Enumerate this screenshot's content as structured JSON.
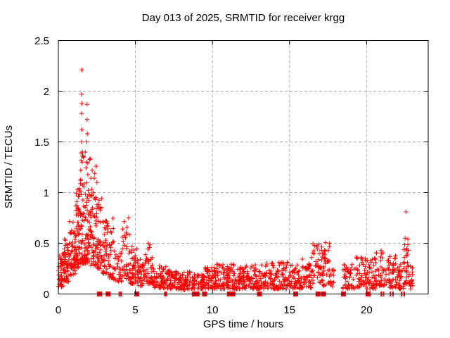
{
  "page": {
    "background": "#ffffff"
  },
  "chart_data": {
    "type": "scatter",
    "title": "Day 013 of 2025, SRMTID for receiver krgg",
    "xlabel": "GPS time / hours",
    "ylabel": "SRMTID / TECUs",
    "xlim": [
      0,
      24
    ],
    "ylim": [
      0,
      2.5
    ],
    "x_ticks": [
      0,
      5,
      10,
      15,
      20
    ],
    "x_tick_labels": [
      "0",
      "5",
      "10",
      "15",
      "20"
    ],
    "y_ticks": [
      0,
      0.5,
      1,
      1.5,
      2,
      2.5
    ],
    "y_tick_labels": [
      "0",
      "0.5",
      "1",
      "1.5",
      "2",
      "2.5"
    ],
    "grid": true,
    "grid_style": "dashed",
    "legend": null,
    "marker": "plus",
    "marker_color": "#ff0000",
    "grid_color": "#aaaaaa",
    "axis_color": "#000000",
    "seed": 20250113,
    "peak_points": [
      [
        1.53,
        2.21
      ],
      [
        1.5,
        1.97
      ],
      [
        1.53,
        1.88
      ],
      [
        1.86,
        1.87
      ],
      [
        1.5,
        1.78
      ],
      [
        1.86,
        1.72
      ],
      [
        1.53,
        1.62
      ],
      [
        1.88,
        1.58
      ],
      [
        1.5,
        1.5
      ],
      [
        1.85,
        1.5
      ],
      [
        1.57,
        1.4
      ],
      [
        1.62,
        1.35
      ],
      [
        1.48,
        1.32
      ],
      [
        1.84,
        1.3
      ],
      [
        1.45,
        1.22
      ],
      [
        2.2,
        1.22
      ],
      [
        2.44,
        1.26
      ],
      [
        2.36,
        1.19
      ],
      [
        2.5,
        1.1
      ],
      [
        22.56,
        0.81
      ],
      [
        22.5,
        0.55
      ],
      [
        22.68,
        0.54
      ]
    ],
    "bands_format": "[x_start_hr, x_end_hr, n_points, y_min, y_max, bias_exponent]",
    "bands": [
      [
        0.0,
        0.35,
        45,
        0.07,
        0.4,
        1.6
      ],
      [
        0.35,
        0.7,
        50,
        0.12,
        0.55,
        1.6
      ],
      [
        0.7,
        1.1,
        55,
        0.18,
        0.72,
        1.4
      ],
      [
        1.1,
        1.4,
        55,
        0.25,
        1.05,
        1.5
      ],
      [
        1.4,
        1.75,
        60,
        0.3,
        1.45,
        1.7
      ],
      [
        1.75,
        2.1,
        55,
        0.3,
        1.4,
        1.7
      ],
      [
        2.1,
        2.45,
        45,
        0.28,
        1.2,
        1.8
      ],
      [
        2.45,
        2.8,
        45,
        0.25,
        0.95,
        1.8
      ],
      [
        2.8,
        3.2,
        40,
        0.2,
        0.75,
        1.6
      ],
      [
        3.2,
        3.6,
        35,
        0.15,
        0.75,
        1.8
      ],
      [
        3.6,
        4.1,
        30,
        0.12,
        0.45,
        1.5
      ],
      [
        4.1,
        4.65,
        40,
        0.15,
        0.75,
        1.9
      ],
      [
        4.65,
        5.1,
        40,
        0.1,
        0.5,
        1.7
      ],
      [
        5.1,
        5.6,
        40,
        0.08,
        0.35,
        1.5
      ],
      [
        5.6,
        6.2,
        50,
        0.1,
        0.52,
        1.8
      ],
      [
        6.2,
        7.0,
        55,
        0.06,
        0.3,
        1.6
      ],
      [
        7.0,
        7.9,
        65,
        0.05,
        0.24,
        1.4
      ],
      [
        7.9,
        8.8,
        65,
        0.04,
        0.22,
        1.4
      ],
      [
        8.8,
        9.5,
        50,
        0.05,
        0.22,
        1.4
      ],
      [
        9.5,
        10.2,
        55,
        0.05,
        0.28,
        1.6
      ],
      [
        10.2,
        11.0,
        60,
        0.05,
        0.3,
        1.6
      ],
      [
        11.0,
        11.8,
        60,
        0.05,
        0.3,
        1.6
      ],
      [
        11.8,
        12.6,
        60,
        0.05,
        0.28,
        1.5
      ],
      [
        12.6,
        13.4,
        60,
        0.05,
        0.3,
        1.6
      ],
      [
        13.4,
        14.2,
        60,
        0.05,
        0.32,
        1.6
      ],
      [
        14.2,
        15.0,
        60,
        0.05,
        0.32,
        1.6
      ],
      [
        15.0,
        15.8,
        55,
        0.05,
        0.3,
        1.5
      ],
      [
        15.8,
        16.4,
        40,
        0.06,
        0.35,
        1.6
      ],
      [
        16.4,
        17.1,
        42,
        0.1,
        0.5,
        1.3
      ],
      [
        17.1,
        17.65,
        40,
        0.08,
        0.52,
        1.4
      ],
      [
        17.65,
        17.95,
        14,
        0.06,
        0.25,
        1.3
      ],
      [
        18.45,
        19.3,
        45,
        0.05,
        0.3,
        1.5
      ],
      [
        19.3,
        20.0,
        45,
        0.06,
        0.38,
        1.6
      ],
      [
        20.0,
        20.6,
        40,
        0.05,
        0.36,
        1.5
      ],
      [
        20.6,
        21.3,
        45,
        0.08,
        0.44,
        1.6
      ],
      [
        21.3,
        22.0,
        45,
        0.06,
        0.38,
        1.6
      ],
      [
        22.0,
        22.4,
        30,
        0.05,
        0.33,
        1.5
      ],
      [
        22.4,
        22.8,
        34,
        0.1,
        0.5,
        1.5
      ],
      [
        22.8,
        23.0,
        14,
        0.05,
        0.28,
        1.4
      ]
    ],
    "baseline_gap_squares_hr": [
      2.67,
      3.23,
      5.09,
      8.82,
      9.0,
      9.49,
      11.1,
      11.32,
      13.05,
      15.4,
      16.85,
      17.2,
      18.5,
      20.1
    ],
    "baseline_gap_ticks_hr": [
      3.95,
      4.06,
      6.91,
      7.0,
      20.95,
      21.1,
      21.55,
      21.72,
      22.28,
      22.45
    ]
  }
}
